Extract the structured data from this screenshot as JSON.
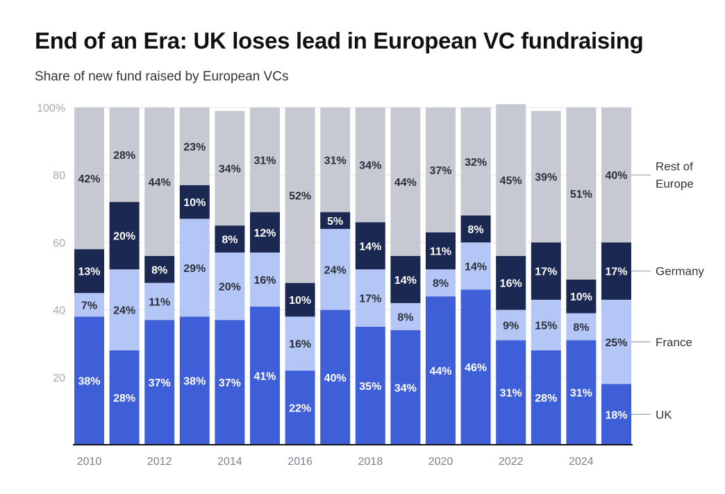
{
  "title": "End of an Era: UK loses lead in European VC fundraising",
  "subtitle": "Share of new fund raised by European VCs",
  "colors": {
    "UK": "#3f5fd9",
    "France": "#b3c6f5",
    "Germany": "#1b2851",
    "Rest of Europe": "#c6c9d1"
  },
  "chart_data": {
    "type": "bar",
    "stacked": true,
    "title": "End of an Era: UK loses lead in European VC fundraising",
    "subtitle": "Share of new fund raised by European VCs",
    "xlabel": "",
    "ylabel": "",
    "ylim": [
      0,
      100
    ],
    "y_ticks": [
      "20",
      "40",
      "60",
      "80",
      "100%"
    ],
    "y_tick_values": [
      20,
      40,
      60,
      80,
      100
    ],
    "x_tick_labels": [
      "2010",
      "2012",
      "2014",
      "2016",
      "2018",
      "2020",
      "2022",
      "2024"
    ],
    "categories": [
      "2010",
      "2011",
      "2012",
      "2013",
      "2014",
      "2015",
      "2016",
      "2017",
      "2018",
      "2019",
      "2020",
      "2021",
      "2022",
      "2023",
      "2024",
      "2025"
    ],
    "series": [
      {
        "name": "UK",
        "values": [
          38,
          28,
          37,
          38,
          37,
          41,
          22,
          40,
          35,
          34,
          44,
          46,
          31,
          28,
          31,
          18
        ]
      },
      {
        "name": "France",
        "values": [
          7,
          24,
          11,
          29,
          20,
          16,
          16,
          24,
          17,
          8,
          8,
          14,
          9,
          15,
          8,
          25
        ]
      },
      {
        "name": "Germany",
        "values": [
          13,
          20,
          8,
          10,
          8,
          12,
          10,
          5,
          14,
          14,
          11,
          8,
          16,
          17,
          10,
          17
        ]
      },
      {
        "name": "Rest of Europe",
        "values": [
          42,
          28,
          44,
          23,
          34,
          31,
          52,
          31,
          34,
          44,
          37,
          32,
          45,
          39,
          51,
          40
        ]
      }
    ],
    "legend": [
      {
        "series": "Rest of Europe",
        "lines": [
          "Rest of",
          "Europe"
        ]
      },
      {
        "series": "Germany",
        "lines": [
          "Germany"
        ]
      },
      {
        "series": "France",
        "lines": [
          "France"
        ]
      },
      {
        "series": "UK",
        "lines": [
          "UK"
        ]
      }
    ],
    "legend_position": "right"
  }
}
